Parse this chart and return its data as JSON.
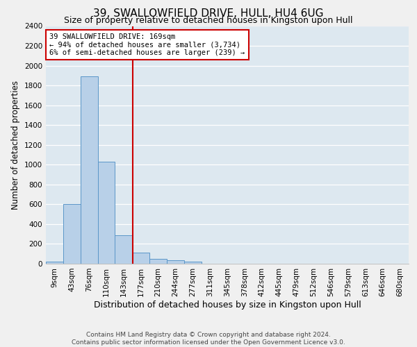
{
  "title": "39, SWALLOWFIELD DRIVE, HULL, HU4 6UG",
  "subtitle": "Size of property relative to detached houses in Kingston upon Hull",
  "xlabel": "Distribution of detached houses by size in Kingston upon Hull",
  "ylabel": "Number of detached properties",
  "footer_line1": "Contains HM Land Registry data © Crown copyright and database right 2024.",
  "footer_line2": "Contains public sector information licensed under the Open Government Licence v3.0.",
  "bin_labels": [
    "9sqm",
    "43sqm",
    "76sqm",
    "110sqm",
    "143sqm",
    "177sqm",
    "210sqm",
    "244sqm",
    "277sqm",
    "311sqm",
    "345sqm",
    "378sqm",
    "412sqm",
    "445sqm",
    "479sqm",
    "512sqm",
    "546sqm",
    "579sqm",
    "613sqm",
    "646sqm",
    "680sqm"
  ],
  "bar_values": [
    20,
    600,
    1890,
    1030,
    290,
    115,
    50,
    32,
    18,
    0,
    0,
    0,
    0,
    0,
    0,
    0,
    0,
    0,
    0,
    0,
    0
  ],
  "bar_color": "#b8d0e8",
  "bar_edge_color": "#5a96c8",
  "vline_x_index": 4.52,
  "vline_color": "#cc0000",
  "annotation_text": "39 SWALLOWFIELD DRIVE: 169sqm\n← 94% of detached houses are smaller (3,734)\n6% of semi-detached houses are larger (239) →",
  "annotation_box_color": "#ffffff",
  "annotation_box_edge_color": "#cc0000",
  "ylim": [
    0,
    2400
  ],
  "yticks": [
    0,
    200,
    400,
    600,
    800,
    1000,
    1200,
    1400,
    1600,
    1800,
    2000,
    2200,
    2400
  ],
  "bg_color": "#dde8f0",
  "grid_color": "#ffffff",
  "title_fontsize": 11,
  "subtitle_fontsize": 9,
  "ylabel_fontsize": 8.5,
  "xlabel_fontsize": 9,
  "tick_fontsize": 7.5,
  "footer_fontsize": 6.5
}
